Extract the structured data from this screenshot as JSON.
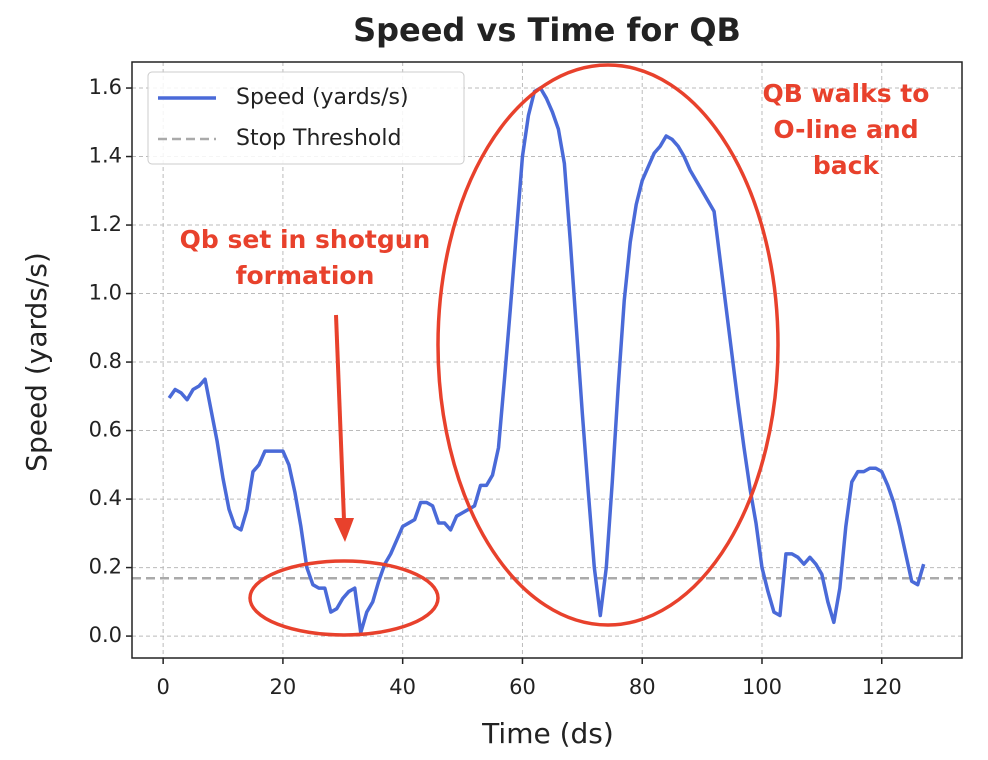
{
  "chart_data": {
    "type": "line",
    "title": "Speed vs Time for QB",
    "x_label": "Time (ds)",
    "y_label": "Speed (yards/s)",
    "x": [
      1,
      2,
      3,
      4,
      5,
      6,
      7,
      8,
      9,
      10,
      11,
      12,
      13,
      14,
      15,
      16,
      17,
      18,
      19,
      20,
      21,
      22,
      23,
      24,
      25,
      26,
      27,
      28,
      29,
      30,
      31,
      32,
      33,
      34,
      35,
      36,
      37,
      38,
      39,
      40,
      41,
      42,
      43,
      44,
      45,
      46,
      47,
      48,
      49,
      50,
      51,
      52,
      53,
      54,
      55,
      56,
      57,
      58,
      59,
      60,
      61,
      62,
      63,
      64,
      65,
      66,
      67,
      68,
      69,
      70,
      71,
      72,
      73,
      74,
      75,
      76,
      77,
      78,
      79,
      80,
      81,
      82,
      83,
      84,
      85,
      86,
      87,
      88,
      89,
      90,
      91,
      92,
      93,
      94,
      95,
      96,
      97,
      98,
      99,
      100,
      101,
      102,
      103,
      104,
      105,
      106,
      107,
      108,
      109,
      110,
      111,
      112,
      113,
      114,
      115,
      116,
      117,
      118,
      119,
      120,
      121,
      122,
      123,
      124,
      125,
      126,
      127
    ],
    "series": [
      {
        "name": "Speed (yards/s)",
        "color": "#4a6ad8",
        "values": [
          0.695,
          0.72,
          0.71,
          0.69,
          0.72,
          0.73,
          0.75,
          0.66,
          0.57,
          0.46,
          0.37,
          0.32,
          0.31,
          0.37,
          0.48,
          0.5,
          0.54,
          0.54,
          0.54,
          0.54,
          0.5,
          0.42,
          0.32,
          0.2,
          0.15,
          0.14,
          0.14,
          0.07,
          0.08,
          0.11,
          0.13,
          0.14,
          0.01,
          0.07,
          0.1,
          0.16,
          0.21,
          0.24,
          0.28,
          0.32,
          0.33,
          0.34,
          0.39,
          0.39,
          0.38,
          0.33,
          0.33,
          0.31,
          0.35,
          0.36,
          0.37,
          0.38,
          0.44,
          0.44,
          0.47,
          0.55,
          0.75,
          0.96,
          1.18,
          1.4,
          1.52,
          1.59,
          1.6,
          1.57,
          1.53,
          1.48,
          1.38,
          1.15,
          0.9,
          0.65,
          0.42,
          0.2,
          0.06,
          0.2,
          0.45,
          0.73,
          0.98,
          1.15,
          1.26,
          1.33,
          1.37,
          1.41,
          1.43,
          1.46,
          1.45,
          1.43,
          1.4,
          1.36,
          1.33,
          1.3,
          1.27,
          1.24,
          1.1,
          0.96,
          0.82,
          0.68,
          0.55,
          0.43,
          0.33,
          0.2,
          0.13,
          0.07,
          0.06,
          0.24,
          0.24,
          0.23,
          0.21,
          0.23,
          0.21,
          0.18,
          0.1,
          0.04,
          0.14,
          0.32,
          0.45,
          0.48,
          0.48,
          0.49,
          0.49,
          0.48,
          0.44,
          0.39,
          0.32,
          0.24,
          0.16,
          0.15,
          0.21
        ]
      }
    ],
    "threshold": {
      "name": "Stop Threshold",
      "value": 0.169,
      "color": "#aaaaaa"
    },
    "xlim": [
      -5.2,
      133.4
    ],
    "ylim": [
      -0.064,
      1.676
    ],
    "xticks": [
      0,
      20,
      40,
      60,
      80,
      100,
      120
    ],
    "yticks": [
      {
        "value": 0,
        "label": "0.0"
      },
      0.2,
      0.4,
      0.6,
      0.8,
      {
        "value": 1,
        "label": "1.0"
      },
      1.2,
      1.4,
      1.6
    ],
    "grid": true,
    "legend": "upper left",
    "annotations": [
      {
        "lines": [
          "Qb set in shotgun",
          "formation"
        ],
        "color": "#e8412c"
      },
      {
        "lines": [
          "QB walks to",
          "O-line and",
          "back"
        ],
        "color": "#e8412c"
      }
    ]
  }
}
